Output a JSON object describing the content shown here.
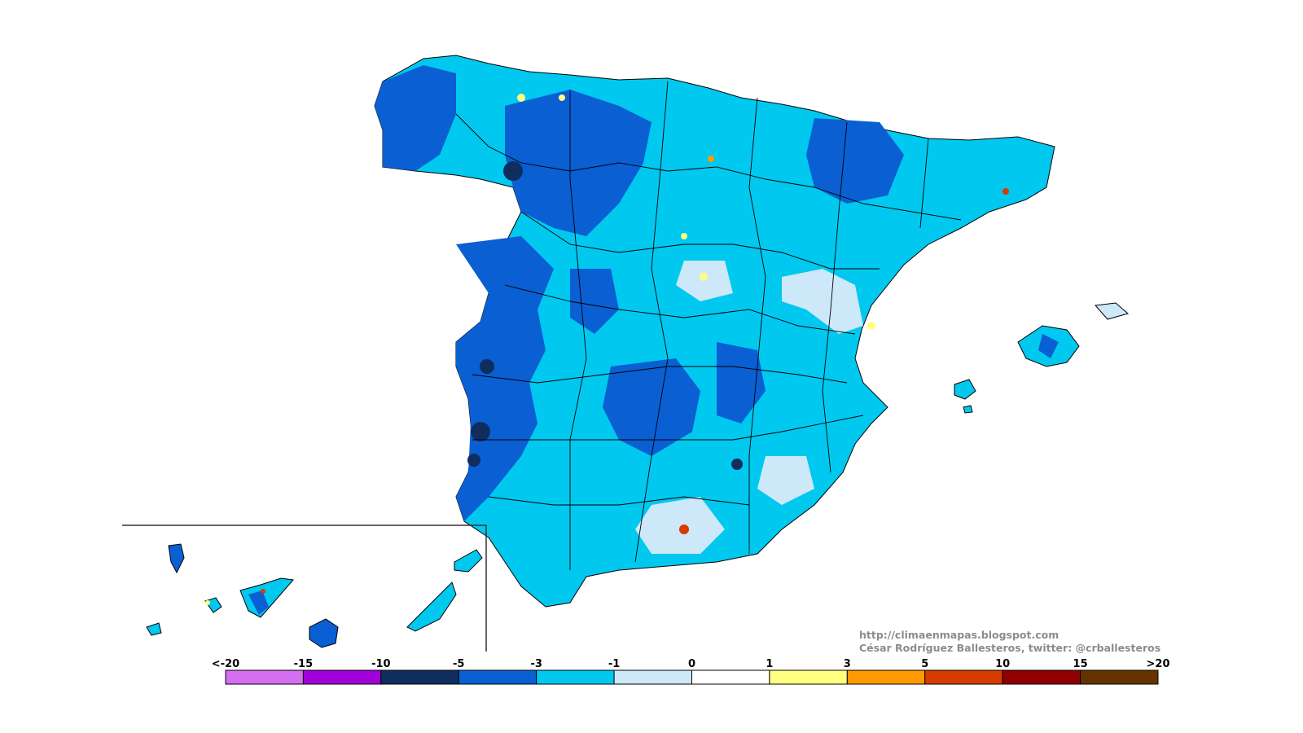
{
  "map": {
    "regions": [
      "Iberian Peninsula",
      "Balearic Islands",
      "Canary Islands"
    ],
    "colormap_note": "anomaly shading"
  },
  "credits": {
    "url": "http://climaenmapas.blogspot.com",
    "author": "César Rodríguez Ballesteros, twitter: @crballesteros"
  },
  "legend": {
    "labels": [
      "<-20",
      "-15",
      "-10",
      "-5",
      "-3",
      "-1",
      "0",
      "1",
      "3",
      "5",
      "10",
      "15",
      ">20"
    ],
    "colors": [
      "#d36ff0",
      "#a100d8",
      "#0f2e5e",
      "#0a5fd3",
      "#00c8ef",
      "#cde8f8",
      "#ffffff",
      "#ffff80",
      "#ff9a00",
      "#d63b00",
      "#8f0000",
      "#663300"
    ]
  }
}
